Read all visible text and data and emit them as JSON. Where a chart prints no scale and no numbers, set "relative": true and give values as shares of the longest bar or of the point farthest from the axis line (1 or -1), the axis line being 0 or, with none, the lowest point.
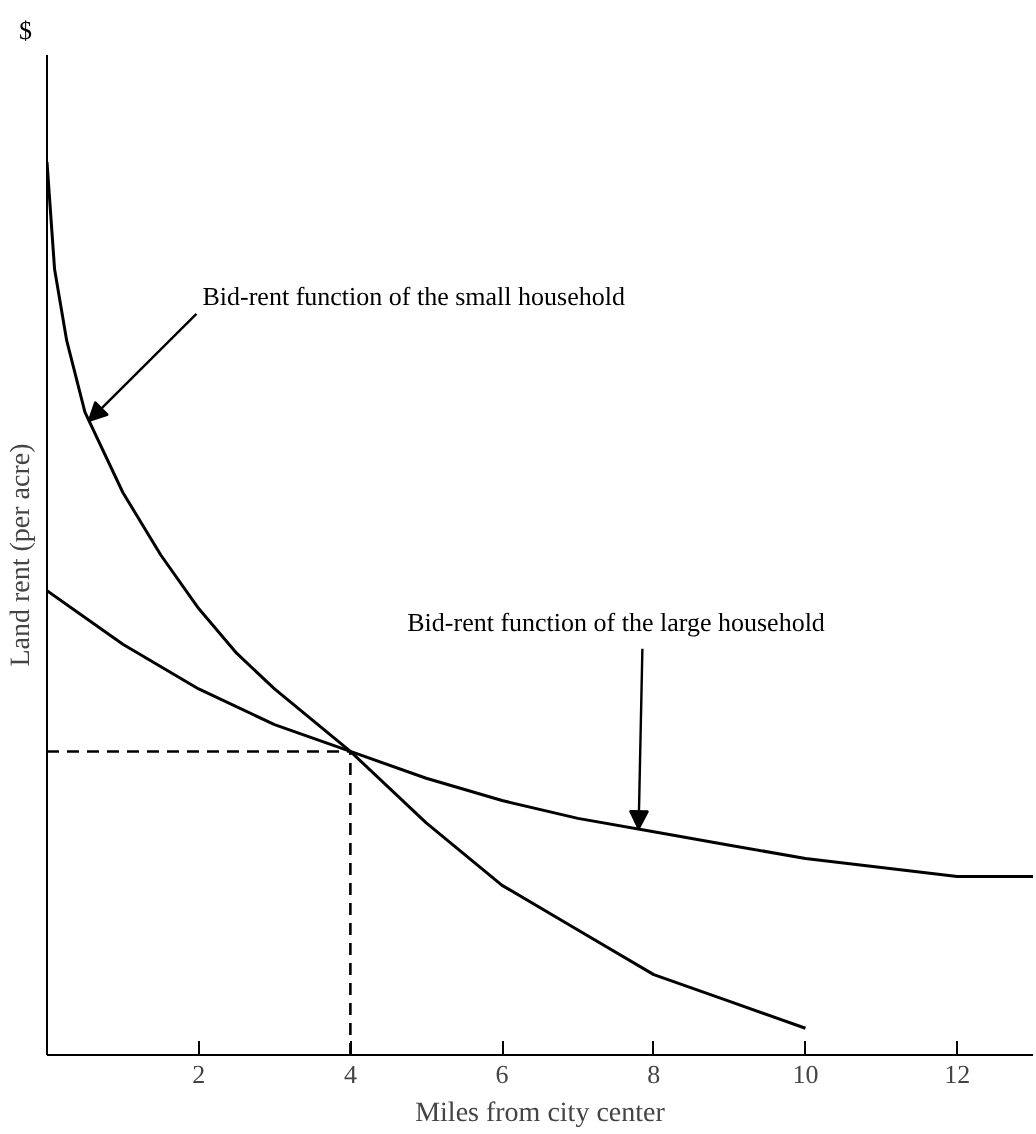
{
  "chart_data": {
    "type": "line",
    "relative": true,
    "xlabel": "Miles from city center",
    "ylabel": "Land rent (per acre)",
    "xlim": [
      0,
      13
    ],
    "xticks": [
      2,
      4,
      6,
      8,
      10,
      12
    ],
    "tick_labels": "x",
    "grid": false,
    "marker": "none",
    "line_style": "solid",
    "series": [
      {
        "color": "#000000",
        "x": [
          0,
          0.1,
          0.26,
          0.5,
          1,
          1.5,
          2,
          2.5,
          3,
          3.5,
          4,
          5,
          6,
          7,
          8,
          9,
          10
        ],
        "values": [
          1.0,
          0.88,
          0.8,
          0.72,
          0.63,
          0.56,
          0.5,
          0.45,
          0.41,
          0.375,
          0.34,
          0.26,
          0.19,
          0.14,
          0.09,
          0.06,
          0.03
        ]
      },
      {
        "color": "#000000",
        "x": [
          0,
          1,
          2,
          3,
          4,
          5,
          6,
          7,
          8,
          9,
          10,
          11,
          12,
          13
        ],
        "values": [
          0.52,
          0.46,
          0.41,
          0.37,
          0.34,
          0.31,
          0.285,
          0.265,
          0.25,
          0.235,
          0.22,
          0.21,
          0.2,
          0.2
        ]
      }
    ],
    "ref_lines": [
      {
        "axis": "x",
        "value": 4,
        "line_style": "dashed",
        "color": "#000000"
      },
      {
        "axis": "y",
        "value": 0.34,
        "line_style": "dashed",
        "color": "#000000"
      }
    ],
    "annotations": [
      "$",
      {
        "text": "Bid-rent function of the small household",
        "x": 0.55,
        "y": 0.71
      },
      {
        "text": "Bid-rent function of the large household",
        "x": 7.8,
        "y": 0.253
      }
    ]
  }
}
